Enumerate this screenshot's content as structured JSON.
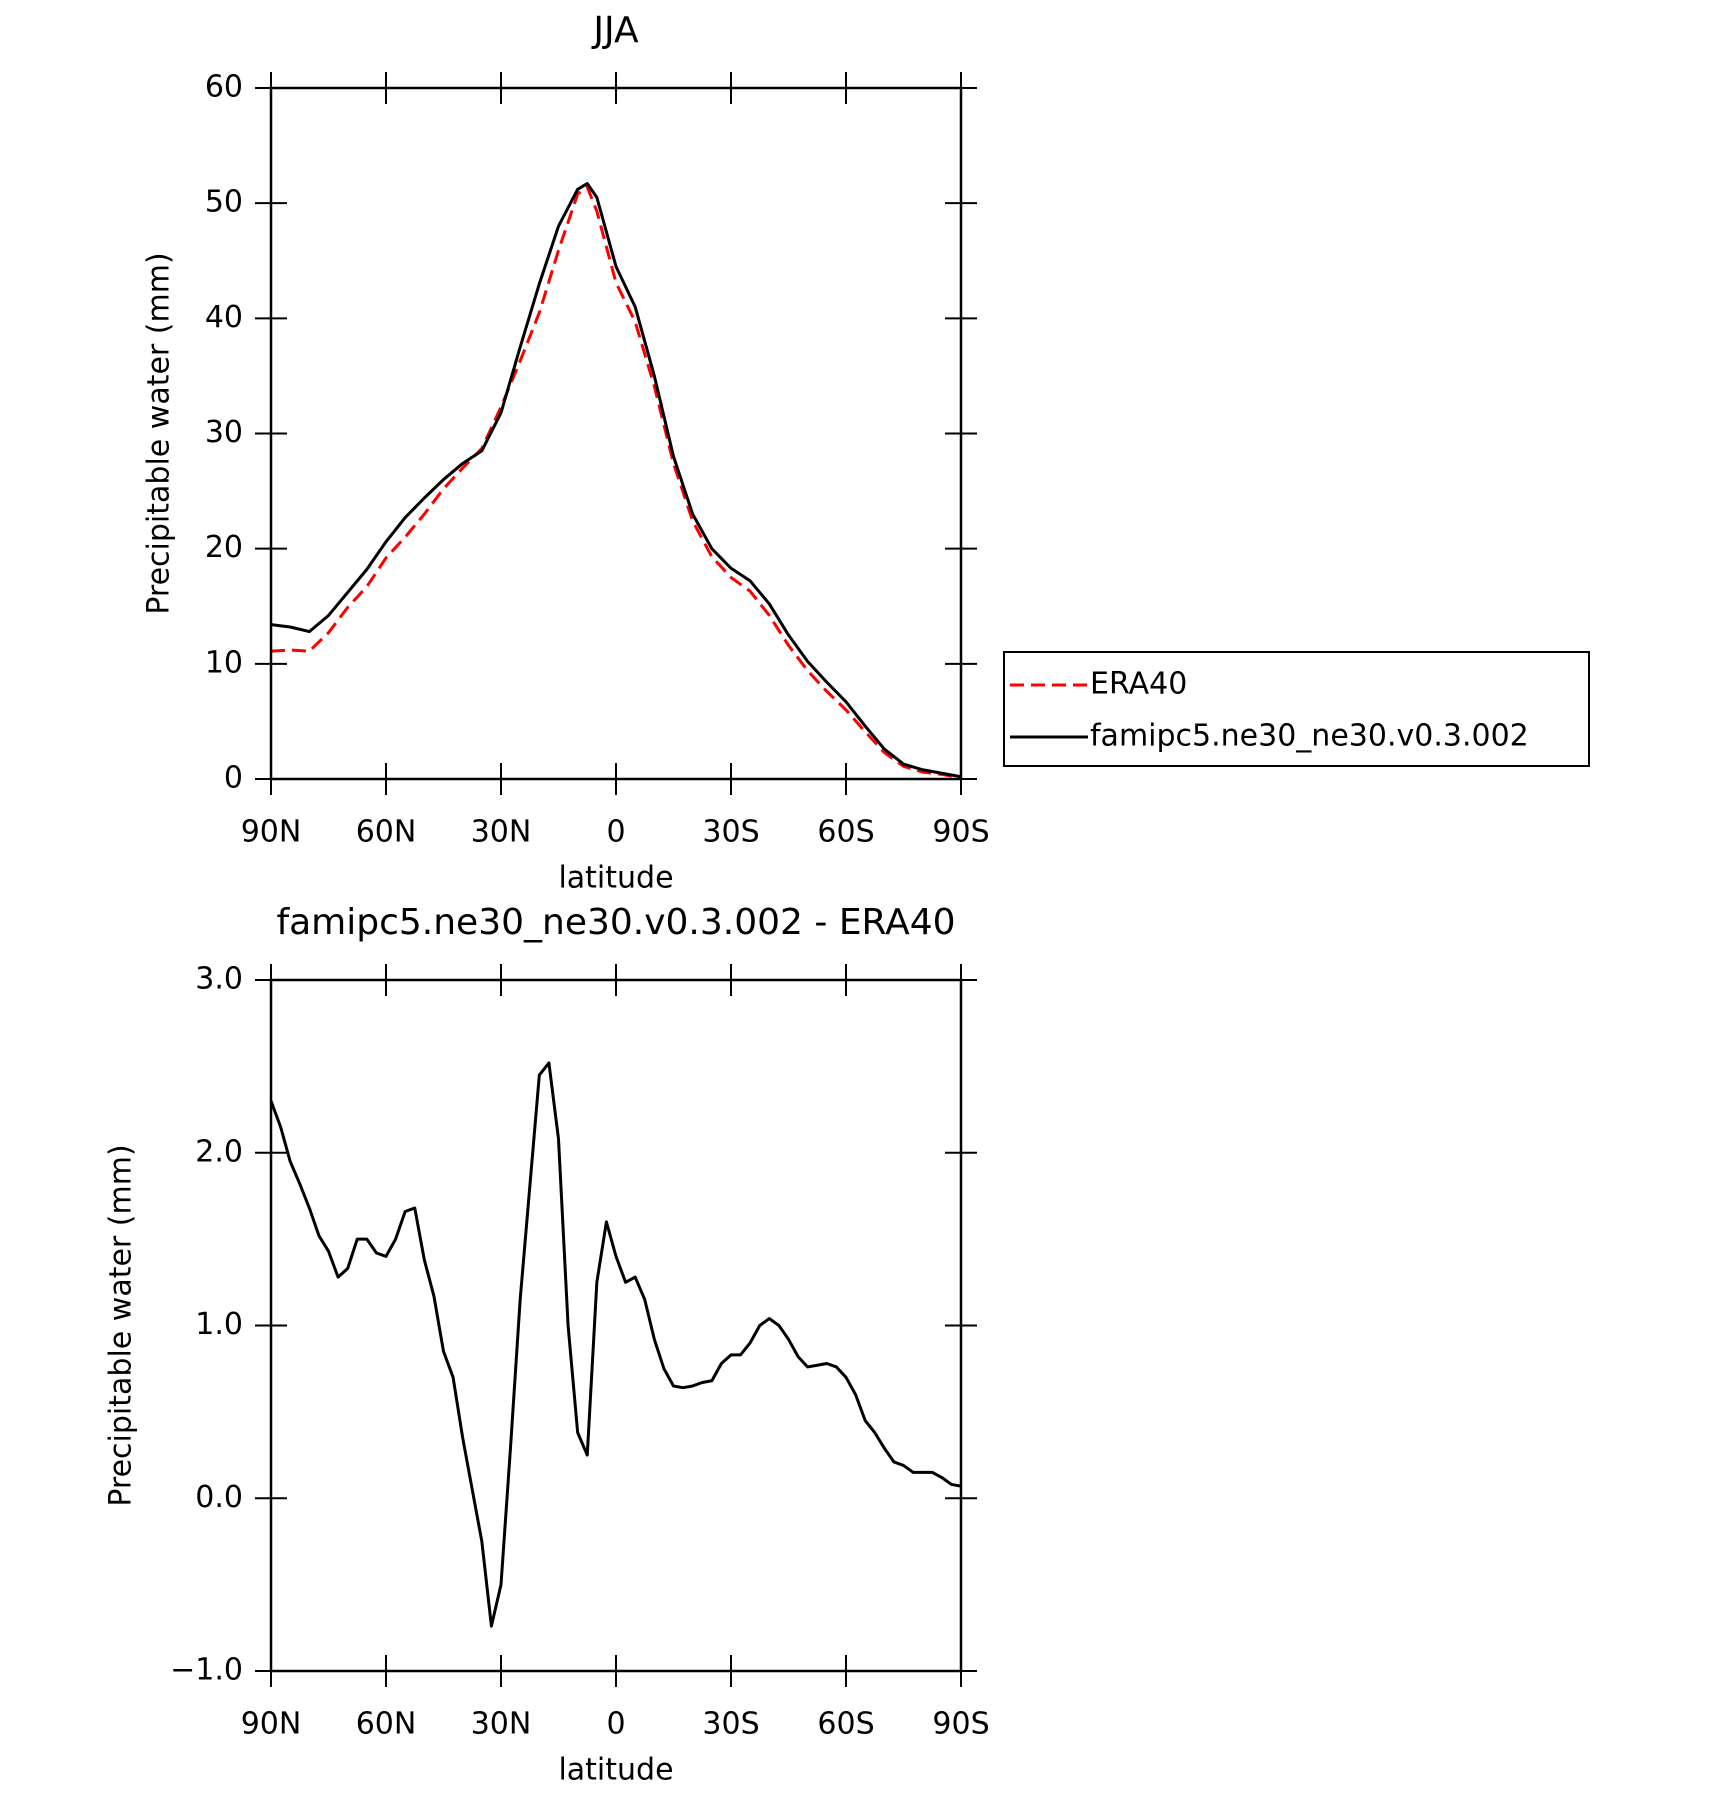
{
  "chart_data": [
    {
      "type": "line",
      "title": "JJA",
      "x_label": "latitude",
      "y_label": "Precipitable water (mm)",
      "x": [
        90,
        85,
        80,
        75,
        70,
        65,
        60,
        55,
        50,
        45,
        40,
        35,
        30,
        25,
        20,
        15,
        10,
        7.5,
        5,
        0,
        -5,
        -10,
        -15,
        -20,
        -25,
        -30,
        -35,
        -40,
        -45,
        -50,
        -55,
        -60,
        -65,
        -70,
        -75,
        -80,
        -85,
        -90
      ],
      "series": [
        {
          "name": "ERA40",
          "color": "#ff0000",
          "linestyle": "dashed",
          "values": [
            11.1,
            11.2,
            11.1,
            12.7,
            14.9,
            16.7,
            19.2,
            21.0,
            23.0,
            25.2,
            27.0,
            28.7,
            32.3,
            36.3,
            40.5,
            45.9,
            50.8,
            51.4,
            49.3,
            43.1,
            39.7,
            34.1,
            27.4,
            22.4,
            19.3,
            17.5,
            16.3,
            14.2,
            11.6,
            9.4,
            7.6,
            6.0,
            4.1,
            2.3,
            1.1,
            0.6,
            0.4,
            0.1
          ]
        },
        {
          "name": "famipc5.ne30_ne30.v0.3.002",
          "color": "#000000",
          "linestyle": "solid",
          "values": [
            13.4,
            13.2,
            12.8,
            14.2,
            16.2,
            18.2,
            20.6,
            22.7,
            24.4,
            26.0,
            27.4,
            28.5,
            31.8,
            37.5,
            43.0,
            48.0,
            51.2,
            51.7,
            50.5,
            44.5,
            41.0,
            35.0,
            28.0,
            23.0,
            20.0,
            18.3,
            17.2,
            15.2,
            12.5,
            10.2,
            8.4,
            6.7,
            4.6,
            2.6,
            1.3,
            0.8,
            0.5,
            0.2
          ]
        }
      ],
      "xlim": [
        90,
        -90
      ],
      "xticks": [
        {
          "value": 90,
          "label": "90N"
        },
        {
          "value": 60,
          "label": "60N"
        },
        {
          "value": 30,
          "label": "30N"
        },
        0,
        {
          "value": -30,
          "label": "30S"
        },
        {
          "value": -60,
          "label": "60S"
        },
        {
          "value": -90,
          "label": "90S"
        }
      ],
      "ylim": [
        0,
        60
      ],
      "yticks": [
        0,
        10,
        20,
        30,
        40,
        50,
        60
      ],
      "legend": "right"
    },
    {
      "type": "line",
      "title": "famipc5.ne30_ne30.v0.3.002 - ERA40",
      "x_label": "latitude",
      "y_label": "Precipitable water (mm)",
      "x": [
        90,
        87.5,
        85,
        82.5,
        80,
        77.5,
        75,
        72.5,
        70,
        67.5,
        65,
        62.5,
        60,
        57.5,
        55,
        52.5,
        50,
        47.5,
        45,
        42.5,
        40,
        37.5,
        35,
        32.5,
        30,
        27.5,
        25,
        22.5,
        20,
        17.5,
        15,
        12.5,
        10,
        7.5,
        5,
        2.5,
        0,
        -2.5,
        -5,
        -7.5,
        -10,
        -12.5,
        -15,
        -17.5,
        -20,
        -22.5,
        -25,
        -27.5,
        -30,
        -32.5,
        -35,
        -37.5,
        -40,
        -42.5,
        -45,
        -47.5,
        -50,
        -52.5,
        -55,
        -57.5,
        -60,
        -62.5,
        -65,
        -67.5,
        -70,
        -72.5,
        -75,
        -77.5,
        -80,
        -82.5,
        -85,
        -87.5,
        -90
      ],
      "series": [
        {
          "color": "#000000",
          "linestyle": "solid",
          "values": [
            2.3,
            2.15,
            1.95,
            1.82,
            1.68,
            1.52,
            1.43,
            1.28,
            1.33,
            1.5,
            1.5,
            1.42,
            1.4,
            1.5,
            1.66,
            1.68,
            1.38,
            1.17,
            0.85,
            0.7,
            0.35,
            0.05,
            -0.25,
            -0.74,
            -0.5,
            0.3,
            1.15,
            1.8,
            2.45,
            2.52,
            2.08,
            1.0,
            0.38,
            0.25,
            1.25,
            1.6,
            1.4,
            1.25,
            1.28,
            1.15,
            0.92,
            0.75,
            0.65,
            0.64,
            0.65,
            0.67,
            0.68,
            0.78,
            0.83,
            0.83,
            0.9,
            1.0,
            1.04,
            1.0,
            0.92,
            0.82,
            0.76,
            0.77,
            0.78,
            0.76,
            0.7,
            0.6,
            0.45,
            0.38,
            0.29,
            0.21,
            0.19,
            0.15,
            0.15,
            0.15,
            0.12,
            0.08,
            0.07
          ]
        }
      ],
      "xlim": [
        90,
        -90
      ],
      "xticks": [
        {
          "value": 90,
          "label": "90N"
        },
        {
          "value": 60,
          "label": "60N"
        },
        {
          "value": 30,
          "label": "30N"
        },
        0,
        {
          "value": -30,
          "label": "30S"
        },
        {
          "value": -60,
          "label": "60S"
        },
        {
          "value": -90,
          "label": "90S"
        }
      ],
      "ylim": [
        -1,
        3
      ],
      "yticks": [
        {
          "value": -1,
          "label": "−1.0"
        },
        {
          "value": 0,
          "label": "0.0"
        },
        {
          "value": 1,
          "label": "1.0"
        },
        {
          "value": 2,
          "label": "2.0"
        },
        {
          "value": 3,
          "label": "3.0"
        }
      ]
    }
  ]
}
